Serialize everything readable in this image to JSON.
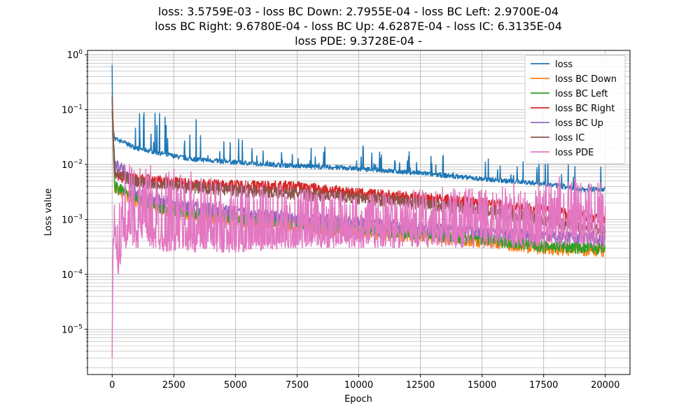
{
  "chart_data": {
    "type": "line",
    "title_lines": [
      "loss: 3.5759E-03 - loss BC Down: 2.7955E-04 - loss BC Left: 2.9700E-04",
      "loss BC Right: 9.6780E-04 - loss BC Up: 4.6287E-04 - loss IC: 6.3135E-04",
      "loss PDE: 9.3728E-04 -"
    ],
    "xlabel": "Epoch",
    "ylabel": "Loss value",
    "xlim": [
      -1000,
      21000
    ],
    "xticks": [
      0,
      2500,
      5000,
      7500,
      10000,
      12500,
      15000,
      17500,
      20000
    ],
    "xtick_labels": [
      "0",
      "2500",
      "5000",
      "7500",
      "10000",
      "12500",
      "15000",
      "17500",
      "20000"
    ],
    "yscale": "log",
    "ylim": [
      1.5e-06,
      1.2
    ],
    "yticks": [
      1e-05,
      0.0001,
      0.001,
      0.01,
      0.1,
      1
    ],
    "ytick_labels": [
      {
        "base": "10",
        "exp": "−5"
      },
      {
        "base": "10",
        "exp": "−4"
      },
      {
        "base": "10",
        "exp": "−3"
      },
      {
        "base": "10",
        "exp": "−2"
      },
      {
        "base": "10",
        "exp": "−1"
      },
      {
        "base": "10",
        "exp": "0"
      }
    ],
    "grid": true,
    "legend_position": "top-right",
    "series": [
      {
        "name": "loss",
        "color": "#1f77b4",
        "x": [
          0,
          20,
          100,
          500,
          1000,
          2000,
          3000,
          5000,
          7500,
          10000,
          12500,
          15000,
          17500,
          19000,
          20000
        ],
        "y": [
          0.6,
          0.05,
          0.03,
          0.025,
          0.02,
          0.016,
          0.013,
          0.011,
          0.0095,
          0.0085,
          0.007,
          0.0055,
          0.0045,
          0.0035,
          0.0036
        ],
        "band_high": [
          0.6,
          0.1,
          0.035,
          0.032,
          0.1,
          0.1,
          0.1,
          0.03,
          0.025,
          0.022,
          0.02,
          0.016,
          0.013,
          0.01,
          0.009
        ]
      },
      {
        "name": "loss BC Down",
        "color": "#ff7f0e",
        "x": [
          0,
          100,
          500,
          1000,
          2000,
          3000,
          5000,
          7500,
          10000,
          12500,
          15000,
          17500,
          20000
        ],
        "y": [
          0.1,
          0.004,
          0.003,
          0.0022,
          0.0016,
          0.0013,
          0.001,
          0.0008,
          0.0006,
          0.0005,
          0.0004,
          0.0003,
          0.00028
        ]
      },
      {
        "name": "loss BC Left",
        "color": "#2ca02c",
        "x": [
          0,
          100,
          500,
          1000,
          2000,
          3000,
          5000,
          7500,
          10000,
          12500,
          15000,
          17500,
          20000
        ],
        "y": [
          0.1,
          0.004,
          0.0032,
          0.0024,
          0.0017,
          0.0014,
          0.0011,
          0.0009,
          0.0007,
          0.00055,
          0.00045,
          0.00033,
          0.0003
        ]
      },
      {
        "name": "loss BC Right",
        "color": "#d62728",
        "x": [
          0,
          100,
          500,
          1000,
          2000,
          3000,
          5000,
          7500,
          10000,
          12500,
          15000,
          17500,
          20000
        ],
        "y": [
          0.15,
          0.006,
          0.006,
          0.0055,
          0.005,
          0.0045,
          0.0042,
          0.004,
          0.003,
          0.0025,
          0.002,
          0.0015,
          0.00097
        ]
      },
      {
        "name": "loss BC Up",
        "color": "#9467bd",
        "x": [
          0,
          100,
          500,
          1000,
          2000,
          3000,
          5000,
          7500,
          10000,
          12500,
          15000,
          17500,
          20000
        ],
        "y": [
          0.15,
          0.01,
          0.008,
          0.003,
          0.0022,
          0.0018,
          0.0014,
          0.0011,
          0.0009,
          0.0007,
          0.0006,
          0.0005,
          0.00046
        ]
      },
      {
        "name": "loss IC",
        "color": "#8c564b",
        "x": [
          0,
          100,
          500,
          1000,
          2000,
          3000,
          5000,
          7500,
          10000,
          12500,
          15000,
          17500,
          20000
        ],
        "y": [
          0.18,
          0.007,
          0.006,
          0.005,
          0.0045,
          0.004,
          0.0035,
          0.003,
          0.0025,
          0.002,
          0.0015,
          0.001,
          0.00063
        ]
      },
      {
        "name": "loss PDE",
        "color": "#e377c2",
        "x": [
          0,
          15,
          30,
          100,
          250,
          500,
          1000,
          2000,
          3000,
          5000,
          7500,
          10000,
          12500,
          15000,
          17500,
          20000
        ],
        "y": [
          3e-06,
          3e-05,
          0.0003,
          0.001,
          0.0001,
          0.001,
          0.0008,
          0.0006,
          0.0005,
          0.0004,
          0.00045,
          0.0006,
          0.0007,
          0.0007,
          0.0007,
          0.00094
        ],
        "band_low": [
          3e-06,
          3e-05,
          0.0002,
          0.0005,
          0.0001,
          0.0003,
          0.0003,
          0.00025,
          0.00025,
          0.00025,
          0.0003,
          0.0003,
          0.0003,
          0.0003,
          0.0003,
          0.0003
        ],
        "band_high": [
          3e-06,
          3e-05,
          0.001,
          0.003,
          0.0015,
          0.01,
          0.01,
          0.01,
          0.008,
          0.005,
          0.004,
          0.003,
          0.004,
          0.004,
          0.006,
          0.006
        ]
      }
    ]
  }
}
